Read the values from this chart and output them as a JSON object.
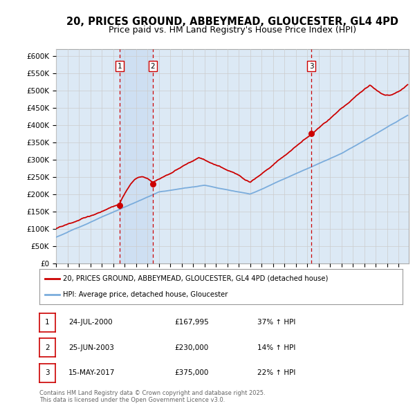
{
  "title": "20, PRICES GROUND, ABBEYMEAD, GLOUCESTER, GL4 4PD",
  "subtitle": "Price paid vs. HM Land Registry's House Price Index (HPI)",
  "title_fontsize": 10.5,
  "subtitle_fontsize": 9,
  "plot_bg_color": "#dce9f5",
  "ylim": [
    0,
    620000
  ],
  "yticks": [
    0,
    50000,
    100000,
    150000,
    200000,
    250000,
    300000,
    350000,
    400000,
    450000,
    500000,
    550000,
    600000
  ],
  "ytick_labels": [
    "£0",
    "£50K",
    "£100K",
    "£150K",
    "£200K",
    "£250K",
    "£300K",
    "£350K",
    "£400K",
    "£450K",
    "£500K",
    "£550K",
    "£600K"
  ],
  "xlim_start": 1995.0,
  "xlim_end": 2025.9,
  "sale_dates": [
    2000.56,
    2003.48,
    2017.37
  ],
  "sale_prices": [
    167995,
    230000,
    375000
  ],
  "sale_labels": [
    "1",
    "2",
    "3"
  ],
  "sale_date_strs": [
    "24-JUL-2000",
    "25-JUN-2003",
    "15-MAY-2017"
  ],
  "sale_price_strs": [
    "£167,995",
    "£230,000",
    "£375,000"
  ],
  "sale_hpi_strs": [
    "37% ↑ HPI",
    "14% ↑ HPI",
    "22% ↑ HPI"
  ],
  "price_line_color": "#cc0000",
  "hpi_line_color": "#7aacdc",
  "grid_color": "#cccccc",
  "legend_label_price": "20, PRICES GROUND, ABBEYMEAD, GLOUCESTER, GL4 4PD (detached house)",
  "legend_label_hpi": "HPI: Average price, detached house, Gloucester",
  "footer_text": "Contains HM Land Registry data © Crown copyright and database right 2025.\nThis data is licensed under the Open Government Licence v3.0.",
  "dashed_line_color": "#cc0000",
  "shade_color": "#c5d9f0"
}
